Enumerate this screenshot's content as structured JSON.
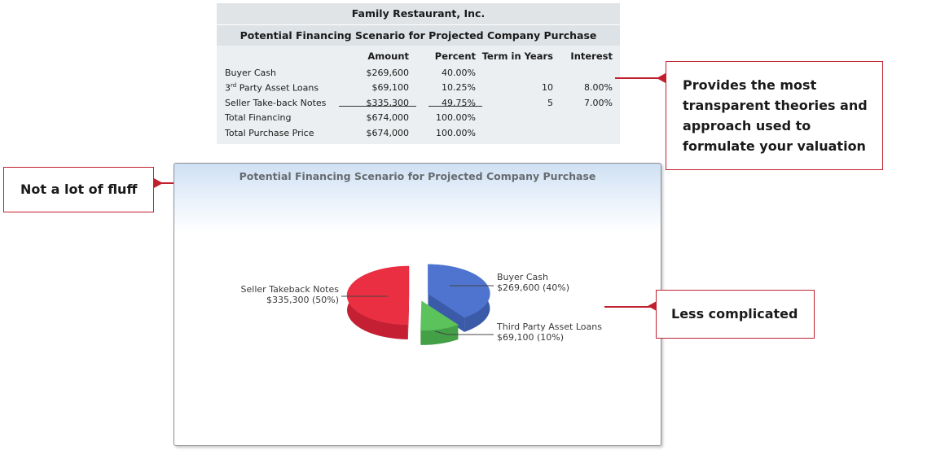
{
  "table": {
    "company": "Family Restaurant, Inc.",
    "title": "Potential Financing Scenario for Projected Company Purchase",
    "columns": [
      "Amount",
      "Percent",
      "Term in Years",
      "Interest"
    ],
    "rows": [
      {
        "name": "Buyer Cash",
        "amount": "$269,600",
        "percent": "40.00%",
        "term": "",
        "interest": ""
      },
      {
        "name": "3rd Party Asset Loans",
        "amount": "$69,100",
        "percent": "10.25%",
        "term": "10",
        "interest": "8.00%"
      },
      {
        "name": "Seller Take-back Notes",
        "amount": "$335,300",
        "percent": "49.75%",
        "term": "5",
        "interest": "7.00%"
      },
      {
        "name": "Total Financing",
        "amount": "$674,000",
        "percent": "100.00%",
        "term": "",
        "interest": ""
      },
      {
        "name": "Total Purchase Price",
        "amount": "$674,000",
        "percent": "100.00%",
        "term": "",
        "interest": ""
      }
    ]
  },
  "callouts": {
    "top_right": "Provides the most transparent theories and approach used to formulate your valuation",
    "left": "Not a lot of fluff",
    "right": "Less complicated"
  },
  "colors": {
    "accent": "#c0202e",
    "buyer_cash": "#4f74cf",
    "third_party": "#5cc25c",
    "seller": "#ea2f43"
  },
  "chart_data": {
    "type": "pie",
    "title": "Potential Financing Scenario for Projected Company Purchase",
    "slices": [
      {
        "label": "Buyer Cash",
        "value": 269600,
        "value_label": "$269,600",
        "percent_label": "(40%)"
      },
      {
        "label": "Third Party Asset Loans",
        "value": 69100,
        "value_label": "$69,100",
        "percent_label": "(10%)"
      },
      {
        "label": "Seller Takeback Notes",
        "value": 335300,
        "value_label": "$335,300",
        "percent_label": "(50%)"
      }
    ]
  }
}
